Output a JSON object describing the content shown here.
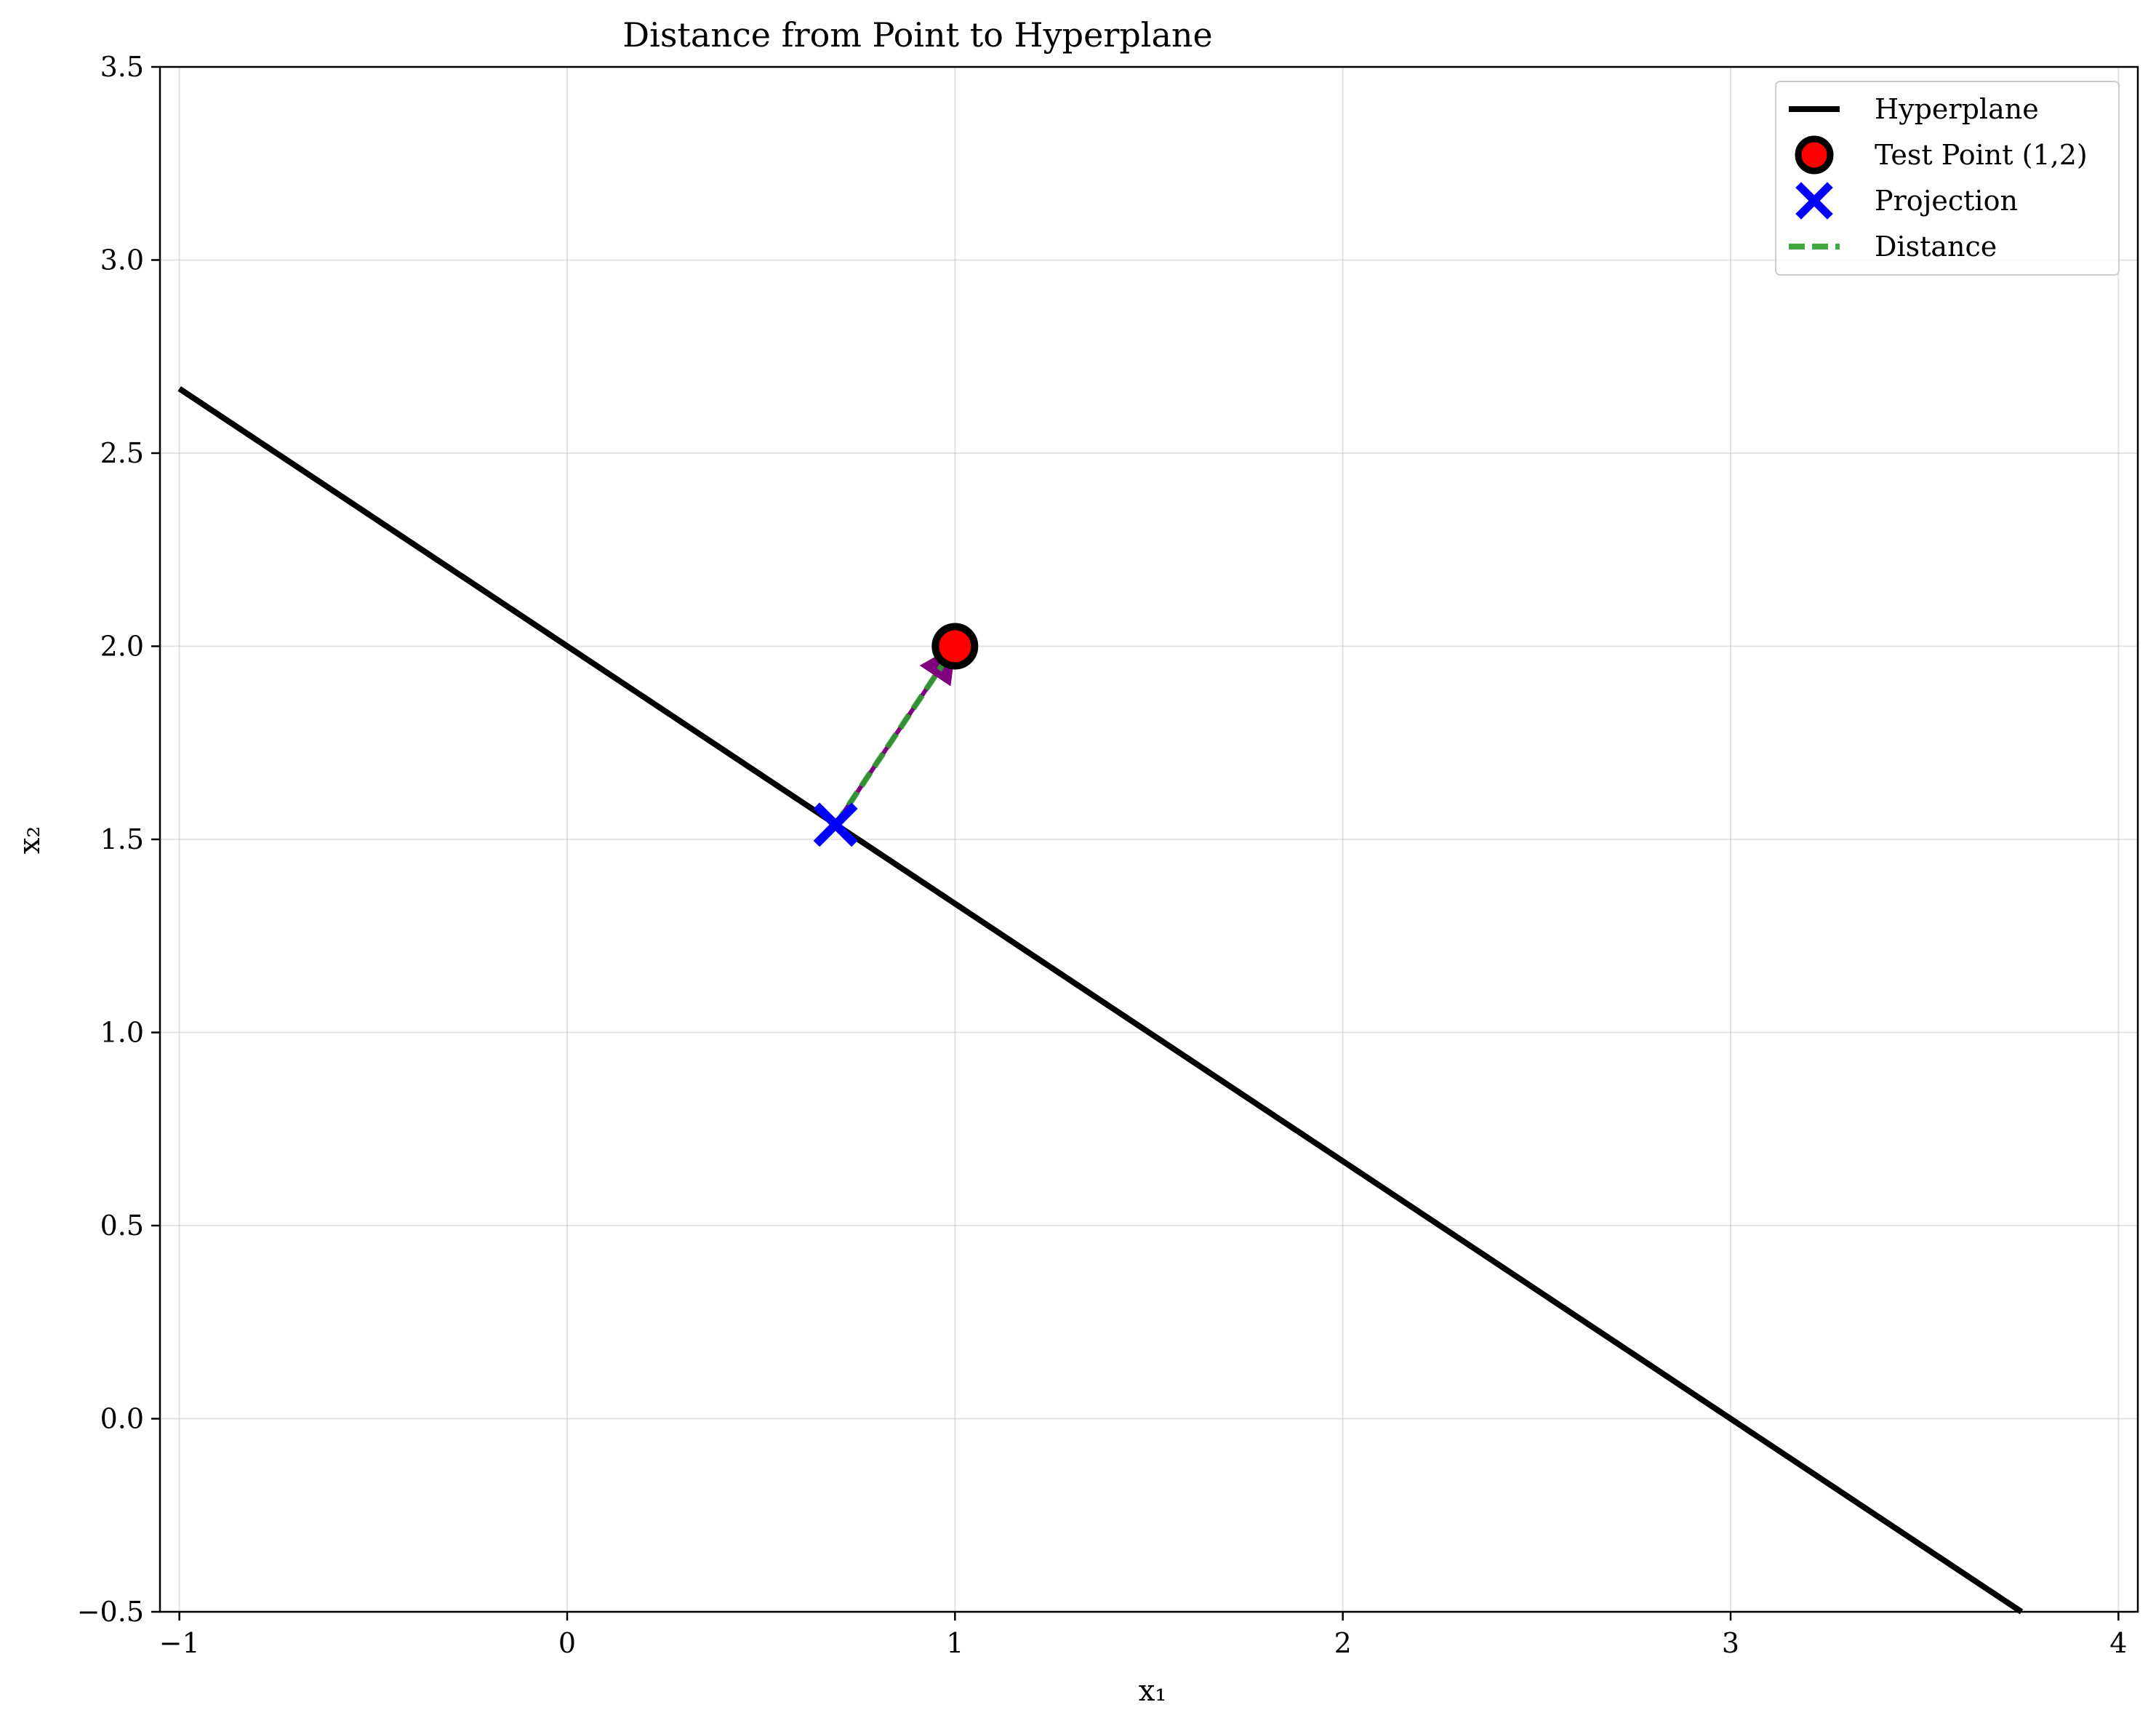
{
  "chart_data": {
    "type": "line",
    "title": "Distance from Point to Hyperplane",
    "xlabel": "x₁",
    "ylabel": "x₂",
    "xlim": [
      -1.05,
      4.05
    ],
    "ylim": [
      -0.5,
      3.5
    ],
    "xticks": [
      -1,
      0,
      1,
      2,
      3,
      4
    ],
    "yticks": [
      -0.5,
      0.0,
      0.5,
      1.0,
      1.5,
      2.0,
      2.5,
      3.0,
      3.5
    ],
    "xtick_labels": [
      "−1",
      "0",
      "1",
      "2",
      "3",
      "4"
    ],
    "ytick_labels": [
      "−0.5",
      "0.0",
      "0.5",
      "1.0",
      "1.5",
      "2.0",
      "2.5",
      "3.0",
      "3.5"
    ],
    "grid": true,
    "legend_position": "top-right",
    "series": [
      {
        "name": "Hyperplane",
        "kind": "line",
        "color": "#000000",
        "x": [
          -1.0,
          3.75
        ],
        "y": [
          2.667,
          -0.5
        ]
      },
      {
        "name": "Test Point (1,2)",
        "kind": "marker-circle",
        "color": "#ff0000",
        "edge_color": "#000000",
        "x": [
          1.0
        ],
        "y": [
          2.0
        ]
      },
      {
        "name": "Projection",
        "kind": "marker-x",
        "color": "#0000ff",
        "x": [
          0.692
        ],
        "y": [
          1.538
        ]
      },
      {
        "name": "Distance",
        "kind": "dashed-line",
        "color": "#2ca02c",
        "x": [
          0.692,
          1.0
        ],
        "y": [
          1.538,
          2.0
        ]
      }
    ],
    "arrow": {
      "color": "#800080",
      "from": [
        0.692,
        1.538
      ],
      "to": [
        1.0,
        2.0
      ]
    }
  }
}
